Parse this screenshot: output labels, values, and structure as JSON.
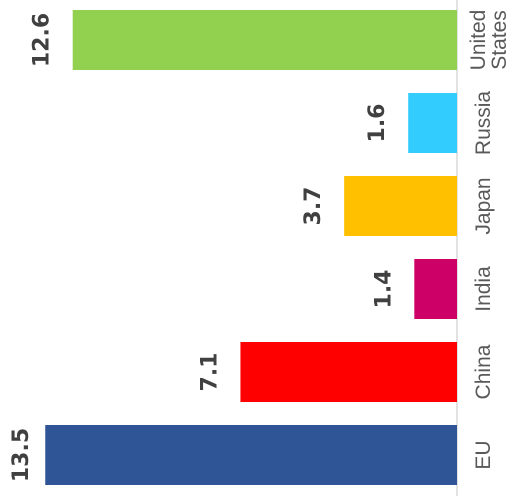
{
  "chart_data": {
    "type": "bar",
    "orientation": "horizontal",
    "rotation": "rotated 90 degrees counter-clockwise; categories read bottom-to-top along the right side",
    "categories": [
      "EU",
      "China",
      "India",
      "Japan",
      "Russia",
      "United States"
    ],
    "values": [
      13.5,
      7.1,
      1.4,
      3.7,
      1.6,
      12.6
    ],
    "value_labels": [
      "13.5",
      "7.1",
      "1.4",
      "3.7",
      "1.6",
      "12.6"
    ],
    "colors": [
      "#2F5597",
      "#FF0000",
      "#CC0066",
      "#FFC000",
      "#33CCFF",
      "#92D050"
    ],
    "title": "",
    "xlabel": "",
    "ylabel": "",
    "xlim": [
      0,
      13.5
    ],
    "grid": false,
    "legend": "none"
  }
}
